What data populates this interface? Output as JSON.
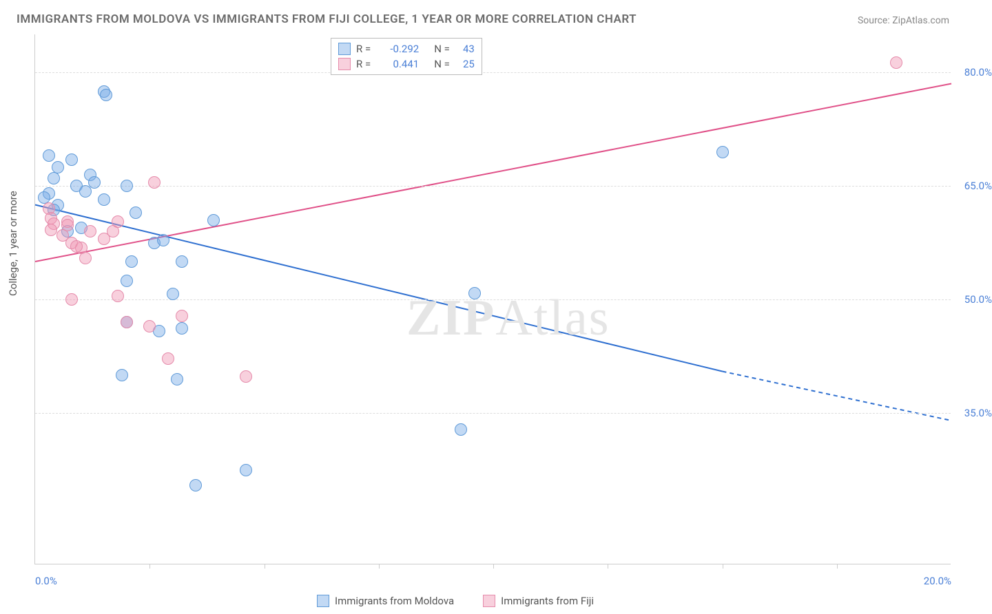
{
  "title": "IMMIGRANTS FROM MOLDOVA VS IMMIGRANTS FROM FIJI COLLEGE, 1 YEAR OR MORE CORRELATION CHART",
  "source": "Source: ZipAtlas.com",
  "ylabel": "College, 1 year or more",
  "watermark_a": "ZIP",
  "watermark_b": "Atlas",
  "chart": {
    "type": "scatter",
    "xlim": [
      0,
      20
    ],
    "ylim": [
      15,
      85
    ],
    "yticks": [
      {
        "v": 35.0,
        "label": "35.0%"
      },
      {
        "v": 50.0,
        "label": "50.0%"
      },
      {
        "v": 65.0,
        "label": "65.0%"
      },
      {
        "v": 80.0,
        "label": "80.0%"
      }
    ],
    "xticks_minor": [
      2.5,
      5,
      7.5,
      10,
      12.5,
      15,
      17.5
    ],
    "xtick_labels": [
      {
        "v": 0,
        "label": "0.0%"
      },
      {
        "v": 20,
        "label": "20.0%"
      }
    ],
    "grid_color": "#dddddd",
    "background_color": "#ffffff",
    "point_radius": 9,
    "series": [
      {
        "name": "Immigrants from Moldova",
        "fill": "rgba(120,170,230,0.45)",
        "stroke": "#5f9ad8",
        "line_color": "#2e6fd0",
        "R": "-0.292",
        "N": "43",
        "trend": {
          "x1": 0,
          "y1": 62.5,
          "x2": 15,
          "y2": 40.5,
          "dash_from_x": 15,
          "x3": 20,
          "y3": 34
        },
        "points": [
          [
            0.3,
            69
          ],
          [
            0.5,
            67.5
          ],
          [
            0.4,
            66
          ],
          [
            0.8,
            68.5
          ],
          [
            0.9,
            65
          ],
          [
            0.3,
            64
          ],
          [
            0.2,
            63.5
          ],
          [
            0.5,
            62.5
          ],
          [
            0.4,
            61.8
          ],
          [
            1.5,
            77.5
          ],
          [
            1.55,
            77
          ],
          [
            1.2,
            66.5
          ],
          [
            1.3,
            65.5
          ],
          [
            1.5,
            63.2
          ],
          [
            1.1,
            64.3
          ],
          [
            1.0,
            59.5
          ],
          [
            0.7,
            59
          ],
          [
            2.0,
            65
          ],
          [
            2.2,
            61.5
          ],
          [
            2.1,
            55
          ],
          [
            2.0,
            52.5
          ],
          [
            2.0,
            47
          ],
          [
            1.9,
            40
          ],
          [
            3.9,
            60.5
          ],
          [
            3.2,
            55
          ],
          [
            3.2,
            46.2
          ],
          [
            2.7,
            45.8
          ],
          [
            3.0,
            50.7
          ],
          [
            2.6,
            57.5
          ],
          [
            2.8,
            57.8
          ],
          [
            4.6,
            27.5
          ],
          [
            3.5,
            25.5
          ],
          [
            3.1,
            39.5
          ],
          [
            9.6,
            50.8
          ],
          [
            9.3,
            32.8
          ],
          [
            15.0,
            69.5
          ]
        ]
      },
      {
        "name": "Immigrants from Fiji",
        "fill": "rgba(240,150,180,0.45)",
        "stroke": "#e58aaa",
        "line_color": "#e05088",
        "R": "0.441",
        "N": "25",
        "trend": {
          "x1": 0,
          "y1": 55,
          "x2": 20,
          "y2": 78.5
        },
        "points": [
          [
            0.3,
            62
          ],
          [
            0.35,
            60.7
          ],
          [
            0.4,
            60
          ],
          [
            0.35,
            59.2
          ],
          [
            0.7,
            60.3
          ],
          [
            0.6,
            58.5
          ],
          [
            0.8,
            57.5
          ],
          [
            0.7,
            59.8
          ],
          [
            1.0,
            56.8
          ],
          [
            1.1,
            55.5
          ],
          [
            1.2,
            59
          ],
          [
            0.8,
            50
          ],
          [
            0.9,
            57
          ],
          [
            1.7,
            59
          ],
          [
            1.8,
            60.3
          ],
          [
            1.5,
            58
          ],
          [
            2.6,
            65.5
          ],
          [
            2.0,
            47.0
          ],
          [
            2.5,
            46.5
          ],
          [
            1.8,
            50.5
          ],
          [
            2.9,
            42.2
          ],
          [
            3.2,
            47.8
          ],
          [
            4.6,
            39.8
          ],
          [
            18.8,
            81.3
          ]
        ]
      }
    ]
  },
  "legend_top": {
    "rows": [
      {
        "swatch_fill": "rgba(120,170,230,0.45)",
        "swatch_stroke": "#5f9ad8",
        "R_label": "R =",
        "R": "-0.292",
        "N_label": "N =",
        "N": "43"
      },
      {
        "swatch_fill": "rgba(240,150,180,0.45)",
        "swatch_stroke": "#e58aaa",
        "R_label": "R =",
        "R": "0.441",
        "N_label": "N =",
        "N": "25"
      }
    ]
  },
  "legend_bottom": [
    {
      "swatch_fill": "rgba(120,170,230,0.45)",
      "swatch_stroke": "#5f9ad8",
      "label": "Immigrants from Moldova"
    },
    {
      "swatch_fill": "rgba(240,150,180,0.45)",
      "swatch_stroke": "#e58aaa",
      "label": "Immigrants from Fiji"
    }
  ]
}
